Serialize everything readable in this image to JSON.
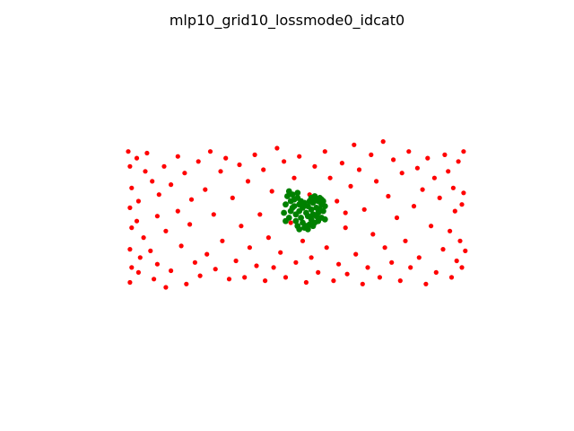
{
  "chart_data": {
    "type": "scatter",
    "title": "mlp10_grid10_lossmode0_idcat0",
    "xlabel": "",
    "ylabel": "",
    "axes_visible": false,
    "grid": false,
    "xlim": [
      -1.3,
      1.3
    ],
    "ylim": [
      -1.0,
      1.0
    ],
    "series": [
      {
        "color": "#ff0000",
        "points": [
          [
            -0.97,
            0.4
          ],
          [
            -0.96,
            0.31
          ],
          [
            -0.95,
            0.18
          ],
          [
            -0.96,
            0.06
          ],
          [
            -0.95,
            -0.06
          ],
          [
            -0.96,
            -0.19
          ],
          [
            -0.95,
            -0.3
          ],
          [
            -0.96,
            -0.39
          ],
          [
            -0.92,
            0.36
          ],
          [
            -0.91,
            0.1
          ],
          [
            -0.92,
            -0.02
          ],
          [
            -0.9,
            -0.24
          ],
          [
            -0.91,
            -0.33
          ],
          [
            -0.87,
            0.28
          ],
          [
            -0.88,
            -0.12
          ],
          [
            -0.86,
            0.39
          ],
          [
            -0.83,
            0.22
          ],
          [
            -0.84,
            -0.2
          ],
          [
            -0.82,
            -0.37
          ],
          [
            -0.79,
            0.14
          ],
          [
            -0.8,
            0.01
          ],
          [
            -0.8,
            -0.28
          ],
          [
            -0.76,
            0.31
          ],
          [
            -0.75,
            -0.08
          ],
          [
            -0.75,
            -0.42
          ],
          [
            -0.72,
            0.2
          ],
          [
            -0.72,
            -0.32
          ],
          [
            -0.68,
            0.37
          ],
          [
            -0.68,
            0.04
          ],
          [
            -0.66,
            -0.17
          ],
          [
            -0.64,
            0.27
          ],
          [
            -0.63,
            -0.4
          ],
          [
            -0.6,
            0.11
          ],
          [
            -0.61,
            -0.04
          ],
          [
            -0.58,
            -0.27
          ],
          [
            -0.56,
            0.34
          ],
          [
            -0.55,
            -0.35
          ],
          [
            -0.52,
            0.17
          ],
          [
            -0.51,
            -0.22
          ],
          [
            -0.49,
            0.4
          ],
          [
            -0.47,
            0.02
          ],
          [
            -0.46,
            -0.31
          ],
          [
            -0.43,
            0.28
          ],
          [
            -0.42,
            -0.14
          ],
          [
            -0.4,
            0.36
          ],
          [
            -0.38,
            -0.37
          ],
          [
            -0.36,
            0.12
          ],
          [
            -0.34,
            -0.26
          ],
          [
            -0.32,
            0.32
          ],
          [
            -0.31,
            -0.05
          ],
          [
            -0.29,
            -0.36
          ],
          [
            -0.27,
            0.22
          ],
          [
            -0.26,
            -0.18
          ],
          [
            -0.23,
            0.38
          ],
          [
            -0.22,
            -0.29
          ],
          [
            -0.2,
            0.02
          ],
          [
            -0.18,
            0.29
          ],
          [
            -0.17,
            -0.38
          ],
          [
            -0.15,
            -0.12
          ],
          [
            -0.13,
            0.16
          ],
          [
            -0.12,
            -0.3
          ],
          [
            -0.1,
            0.42
          ],
          [
            -0.08,
            -0.21
          ],
          [
            -0.06,
            0.34
          ],
          [
            -0.05,
            -0.36
          ],
          [
            -0.02,
            -0.03
          ],
          [
            0.0,
            0.24
          ],
          [
            0.01,
            -0.27
          ],
          [
            0.03,
            0.37
          ],
          [
            0.05,
            -0.14
          ],
          [
            0.07,
            -0.39
          ],
          [
            0.09,
            0.14
          ],
          [
            0.1,
            -0.24
          ],
          [
            0.12,
            0.31
          ],
          [
            0.14,
            -0.33
          ],
          [
            0.16,
            0.04
          ],
          [
            0.18,
            0.4
          ],
          [
            0.19,
            -0.18
          ],
          [
            0.21,
            0.24
          ],
          [
            0.23,
            -0.38
          ],
          [
            0.25,
            0.1
          ],
          [
            0.26,
            -0.28
          ],
          [
            0.28,
            0.33
          ],
          [
            0.3,
            -0.06
          ],
          [
            0.31,
            -0.34
          ],
          [
            0.33,
            0.19
          ],
          [
            0.35,
            0.44
          ],
          [
            0.36,
            -0.22
          ],
          [
            0.38,
            0.29
          ],
          [
            0.4,
            -0.4
          ],
          [
            0.41,
            0.05
          ],
          [
            0.43,
            -0.3
          ],
          [
            0.45,
            0.38
          ],
          [
            0.46,
            -0.1
          ],
          [
            0.48,
            0.22
          ],
          [
            0.5,
            -0.36
          ],
          [
            0.52,
            0.46
          ],
          [
            0.53,
            -0.18
          ],
          [
            0.55,
            0.13
          ],
          [
            0.57,
            -0.27
          ],
          [
            0.58,
            0.35
          ],
          [
            0.6,
            0.0
          ],
          [
            0.62,
            -0.38
          ],
          [
            0.63,
            0.27
          ],
          [
            0.65,
            -0.14
          ],
          [
            0.67,
            0.4
          ],
          [
            0.68,
            -0.3
          ],
          [
            0.7,
            0.07
          ],
          [
            0.72,
            0.3
          ],
          [
            0.73,
            -0.24
          ],
          [
            0.75,
            0.17
          ],
          [
            0.77,
            -0.4
          ],
          [
            0.78,
            0.36
          ],
          [
            0.8,
            -0.05
          ],
          [
            0.82,
            0.24
          ],
          [
            0.83,
            -0.33
          ],
          [
            0.85,
            0.12
          ],
          [
            0.87,
            -0.19
          ],
          [
            0.88,
            0.38
          ],
          [
            0.9,
            0.28
          ],
          [
            0.91,
            -0.08
          ],
          [
            0.92,
            -0.36
          ],
          [
            0.93,
            0.18
          ],
          [
            0.94,
            0.04
          ],
          [
            0.95,
            -0.26
          ],
          [
            0.96,
            0.34
          ],
          [
            0.97,
            -0.14
          ],
          [
            0.98,
            0.08
          ],
          [
            0.98,
            -0.3
          ],
          [
            0.99,
            0.4
          ],
          [
            1.0,
            -0.2
          ],
          [
            0.99,
            0.15
          ],
          [
            0.3,
            0.03
          ]
        ]
      },
      {
        "color": "#008000",
        "points": [
          [
            -0.05,
            0.08
          ],
          [
            -0.04,
            0.13
          ],
          [
            -0.03,
            0.16
          ],
          [
            -0.02,
            0.1
          ],
          [
            -0.02,
            0.04
          ],
          [
            -0.03,
            0.0
          ],
          [
            -0.05,
            -0.02
          ],
          [
            -0.06,
            0.03
          ],
          [
            -0.01,
            0.14
          ],
          [
            0.0,
            0.11
          ],
          [
            0.0,
            0.07
          ],
          [
            0.01,
            0.02
          ],
          [
            0.01,
            -0.02
          ],
          [
            0.02,
            0.12
          ],
          [
            0.03,
            0.08
          ],
          [
            0.03,
            0.04
          ],
          [
            0.02,
            -0.05
          ],
          [
            0.04,
            0.0
          ],
          [
            0.05,
            0.06
          ],
          [
            0.05,
            -0.03
          ],
          [
            0.06,
            0.09
          ],
          [
            0.07,
            0.03
          ],
          [
            0.07,
            -0.05
          ],
          [
            0.08,
            0.07
          ],
          [
            0.08,
            0.01
          ],
          [
            0.09,
            -0.04
          ],
          [
            0.09,
            0.1
          ],
          [
            0.1,
            0.05
          ],
          [
            0.1,
            -0.01
          ],
          [
            0.11,
            0.09
          ],
          [
            0.11,
            0.02
          ],
          [
            0.12,
            -0.03
          ],
          [
            0.12,
            0.11
          ],
          [
            0.13,
            0.06
          ],
          [
            0.13,
            0.01
          ],
          [
            0.14,
            0.1
          ],
          [
            0.14,
            -0.02
          ],
          [
            0.15,
            0.05
          ],
          [
            0.15,
            0.12
          ],
          [
            0.16,
            0.08
          ],
          [
            0.16,
            0.0
          ],
          [
            0.17,
            0.04
          ],
          [
            0.17,
            0.1
          ],
          [
            0.18,
            0.07
          ],
          [
            0.18,
            -0.01
          ],
          [
            0.06,
            -0.06
          ],
          [
            0.04,
            0.1
          ],
          [
            0.12,
            0.13
          ],
          [
            0.03,
            -0.07
          ],
          [
            0.08,
            -0.07
          ],
          [
            0.14,
            0.03
          ],
          [
            -0.01,
            0.06
          ],
          [
            0.1,
            0.12
          ],
          [
            0.16,
            0.11
          ],
          [
            0.02,
            0.15
          ],
          [
            0.11,
            -0.05
          ]
        ]
      }
    ]
  }
}
